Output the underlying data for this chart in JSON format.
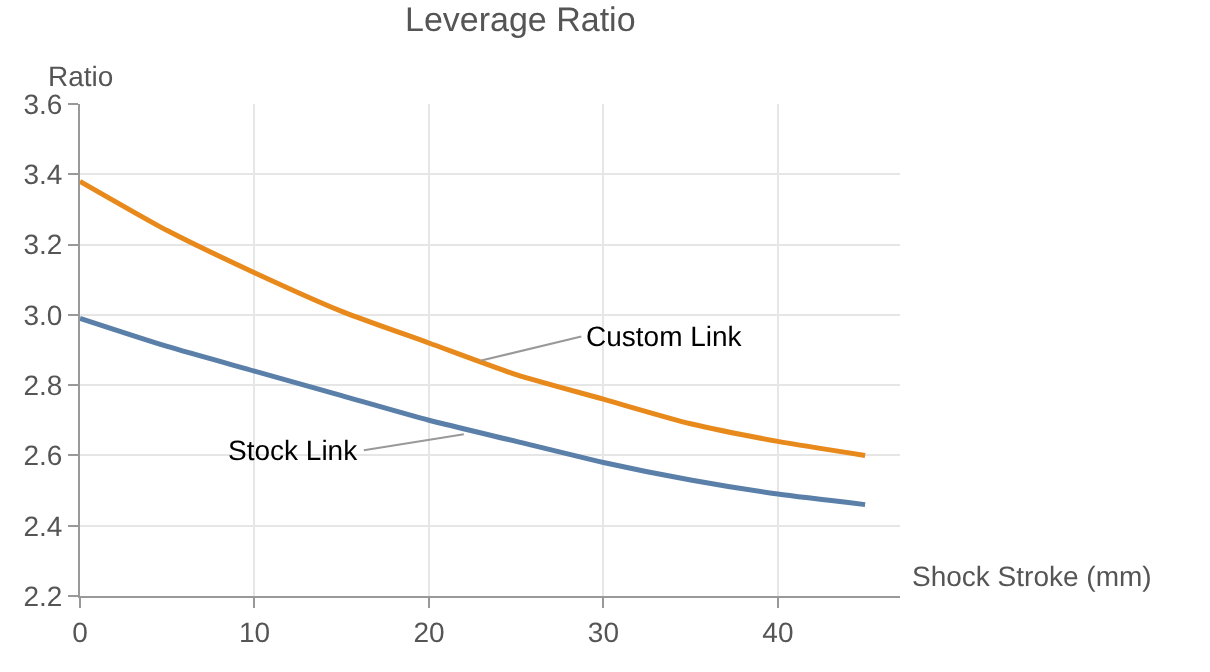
{
  "chart_data": {
    "type": "line",
    "title": "Leverage Ratio",
    "xlabel": "Shock Stroke (mm)",
    "ylabel": "Ratio",
    "x": [
      0,
      5,
      10,
      15,
      20,
      25,
      30,
      35,
      40,
      45
    ],
    "series": [
      {
        "color": "#e8891c",
        "values": [
          3.38,
          3.24,
          3.12,
          3.01,
          2.92,
          2.83,
          2.76,
          2.69,
          2.64,
          2.6
        ]
      },
      {
        "color": "#5a7fa8",
        "values": [
          2.99,
          2.91,
          2.84,
          2.77,
          2.7,
          2.64,
          2.58,
          2.53,
          2.49,
          2.46
        ]
      }
    ],
    "annotations": [
      {
        "text": "Custom Link",
        "x": 23,
        "y": 2.87
      },
      {
        "text": "Stock Link",
        "x": 22,
        "y": 2.66
      }
    ],
    "xlim": [
      0,
      47
    ],
    "xticks": [
      0,
      10,
      20,
      30,
      40
    ],
    "ylim": [
      2.2,
      3.6
    ],
    "yticks": [
      2.2,
      2.4,
      2.6,
      2.8,
      {
        "value": 3,
        "label": "3.0"
      },
      3.2,
      3.4,
      3.6
    ],
    "grid": true,
    "legend": false
  }
}
